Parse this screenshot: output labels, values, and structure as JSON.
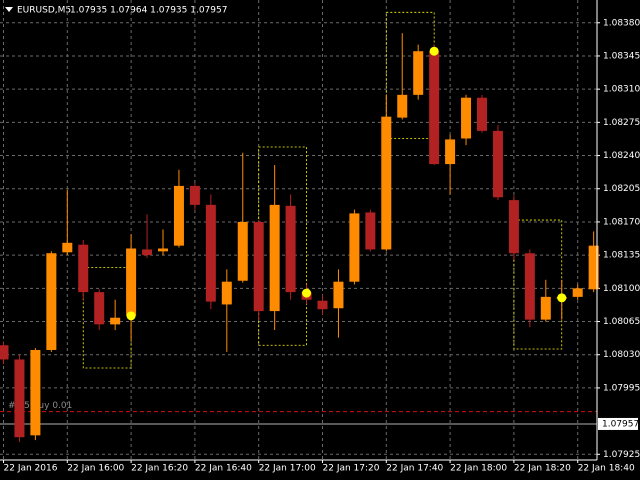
{
  "header": {
    "symbol": "EURUSD,M5",
    "quote": "1.07935 1.07964 1.07935 1.07957"
  },
  "chart_data": {
    "type": "candlestick",
    "categories": [
      "22 Jan 2016",
      null,
      null,
      null,
      "22 Jan 16:00",
      null,
      null,
      null,
      "22 Jan 16:20",
      null,
      null,
      null,
      "22 Jan 16:40",
      null,
      null,
      null,
      "22 Jan 17:00",
      null,
      null,
      null,
      "22 Jan 17:20",
      null,
      null,
      null,
      "22 Jan 17:40",
      null,
      null,
      null,
      "22 Jan 18:00",
      null,
      null,
      null,
      "22 Jan 18:20",
      null,
      null,
      null,
      "22 Jan 18:40",
      null
    ],
    "open": [
      1.0804,
      1.08025,
      1.07945,
      1.08035,
      1.08138,
      1.08146,
      1.08096,
      1.08062,
      1.08071,
      1.08141,
      1.08139,
      1.08145,
      1.08208,
      1.08188,
      1.08083,
      1.08108,
      1.0817,
      1.08076,
      1.08187,
      1.08096,
      1.08087,
      1.08079,
      1.08107,
      1.0818,
      1.08141,
      1.0828,
      1.08304,
      1.0835,
      1.08231,
      1.08258,
      1.08301,
      1.08266,
      1.08193,
      1.08137,
      1.08067,
      1.08089,
      1.08091,
      1.08099
    ],
    "high": [
      1.08044,
      1.0803,
      1.08037,
      1.08139,
      1.08204,
      1.08151,
      1.08099,
      1.08088,
      1.08157,
      1.08178,
      1.08162,
      1.08225,
      1.08211,
      1.08199,
      1.0812,
      1.08243,
      1.08172,
      1.0823,
      1.08199,
      1.08104,
      1.08093,
      1.0812,
      1.08183,
      1.08183,
      1.08304,
      1.08369,
      1.08357,
      1.08357,
      1.08262,
      1.08304,
      1.08304,
      1.08272,
      1.08198,
      1.08141,
      1.08109,
      1.08109,
      1.08104,
      1.0816
    ],
    "low": [
      1.0802,
      1.07938,
      1.0794,
      1.08033,
      1.08135,
      1.08088,
      1.08056,
      1.08056,
      1.08046,
      1.08132,
      1.08135,
      1.08143,
      1.08183,
      1.08078,
      1.08033,
      1.08106,
      1.08067,
      1.08056,
      1.08088,
      1.08083,
      1.08072,
      1.08048,
      1.08104,
      1.08139,
      1.08139,
      1.08278,
      1.08299,
      1.0823,
      1.08199,
      1.08251,
      1.08264,
      1.08193,
      1.0813,
      1.08059,
      1.08065,
      1.08067,
      1.08088,
      1.08096
    ],
    "close": [
      1.08025,
      1.07943,
      1.08035,
      1.08137,
      1.08148,
      1.08096,
      1.08062,
      1.08069,
      1.08142,
      1.08135,
      1.08142,
      1.08208,
      1.08188,
      1.08086,
      1.08107,
      1.0817,
      1.08076,
      1.08188,
      1.08096,
      1.08088,
      1.08078,
      1.08107,
      1.08179,
      1.08141,
      1.08281,
      1.08304,
      1.0835,
      1.08231,
      1.08257,
      1.08301,
      1.08266,
      1.08196,
      1.08137,
      1.08067,
      1.08091,
      1.08091,
      1.081,
      1.08145
    ],
    "signals": [
      null,
      null,
      null,
      null,
      null,
      null,
      null,
      null,
      1.08071,
      null,
      null,
      null,
      null,
      null,
      null,
      null,
      null,
      null,
      null,
      1.08095,
      null,
      null,
      null,
      null,
      null,
      null,
      null,
      1.0835,
      null,
      null,
      null,
      null,
      null,
      null,
      null,
      1.0809,
      null,
      null
    ],
    "box_high": [
      null,
      null,
      null,
      null,
      null,
      null,
      null,
      null,
      1.08122,
      null,
      null,
      null,
      null,
      null,
      null,
      null,
      null,
      null,
      null,
      1.08249,
      null,
      null,
      null,
      null,
      null,
      null,
      null,
      1.08391,
      null,
      null,
      null,
      null,
      null,
      null,
      null,
      1.08172,
      null,
      null
    ],
    "box_low": [
      null,
      null,
      null,
      null,
      null,
      null,
      null,
      null,
      1.08016,
      null,
      null,
      null,
      null,
      null,
      null,
      null,
      null,
      null,
      null,
      1.0804,
      null,
      null,
      null,
      null,
      null,
      null,
      null,
      1.08258,
      null,
      null,
      null,
      null,
      null,
      null,
      null,
      1.08036,
      null,
      null
    ],
    "up_color": "#ff8c00",
    "down_color": "#b22222",
    "signal_color": "#ffff00",
    "ylim": [
      1.07919,
      1.08404
    ],
    "yticks": [
      {
        "value": 1.0838,
        "label": "1.08380"
      },
      1.08345,
      {
        "value": 1.0831,
        "label": "1.08310"
      },
      1.08275,
      {
        "value": 1.0824,
        "label": "1.08240"
      },
      1.08205,
      {
        "value": 1.0817,
        "label": "1.08170"
      },
      1.08135,
      {
        "value": 1.081,
        "label": "1.08100"
      },
      1.08065,
      {
        "value": 1.0803,
        "label": "1.08030"
      },
      1.07995,
      1.07925
    ],
    "grid": true,
    "last_price": 1.07957,
    "order": {
      "label": "# 65 buy 0.01",
      "price": 1.0797
    }
  }
}
